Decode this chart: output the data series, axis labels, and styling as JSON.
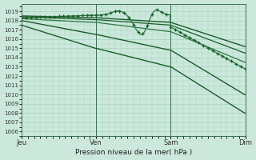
{
  "bg_color": "#cce8dc",
  "grid_color": "#99ccb8",
  "line_color_dark": "#1a5c2a",
  "line_color_mid": "#2d7a40",
  "ylabel_ticks": [
    1006,
    1007,
    1008,
    1009,
    1010,
    1011,
    1012,
    1013,
    1014,
    1015,
    1016,
    1017,
    1018,
    1019
  ],
  "ylim": [
    1005.5,
    1019.8
  ],
  "xlabel": "Pression niveau de la mer( hPa )",
  "xtick_labels": [
    "Jeu",
    "Ven",
    "Sam",
    "Dim"
  ],
  "xtick_positions": [
    0,
    96,
    192,
    288
  ],
  "total_points": 289
}
